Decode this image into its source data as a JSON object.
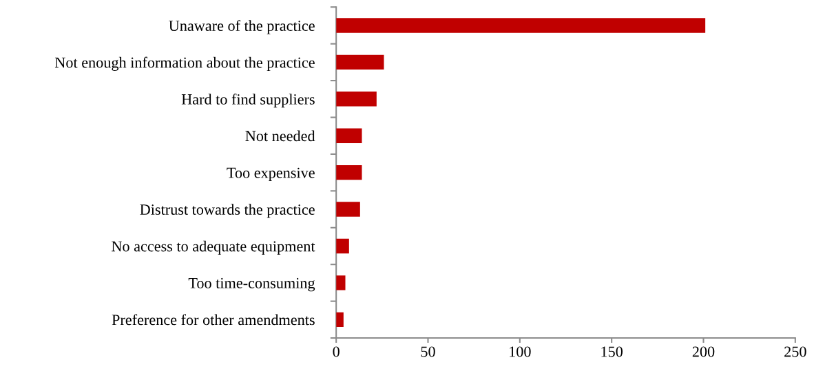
{
  "chart_data": {
    "type": "bar",
    "orientation": "horizontal",
    "categories": [
      "Unaware of the practice",
      "Not enough information about the practice",
      "Hard to find suppliers",
      "Not needed",
      "Too expensive",
      "Distrust towards the practice",
      "No access to adequate equipment",
      "Too time-consuming",
      "Preference for other amendments"
    ],
    "values": [
      201,
      26,
      22,
      14,
      14,
      13,
      7,
      5,
      4
    ],
    "color": "#c00000",
    "xlim": [
      0,
      250
    ],
    "xticks": [
      0,
      50,
      100,
      150,
      200,
      250
    ],
    "grid": false,
    "legend": false
  }
}
